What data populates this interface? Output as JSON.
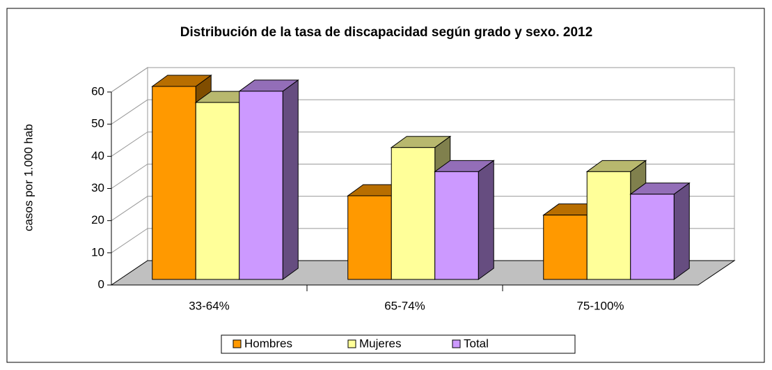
{
  "chart_data": {
    "type": "bar3d",
    "title": "Distribución de la tasa de discapacidad según grado y sexo. 2012",
    "y_label": "casos por 1.000 hab",
    "categories": [
      "33-64%",
      "65-74%",
      "75-100%"
    ],
    "series": [
      {
        "name": "Hombres",
        "color": "#ff9900",
        "values": [
          60,
          26,
          20
        ]
      },
      {
        "name": "Mujeres",
        "color": "#ffff99",
        "values": [
          55,
          41,
          33.5
        ]
      },
      {
        "name": "Total",
        "color": "#cc99ff",
        "values": [
          58.5,
          33.5,
          26.5
        ]
      }
    ],
    "ylim": [
      0,
      60
    ],
    "yticks": [
      0,
      10,
      20,
      30,
      40,
      50,
      60
    ],
    "grid": true,
    "legend": "bottom"
  }
}
